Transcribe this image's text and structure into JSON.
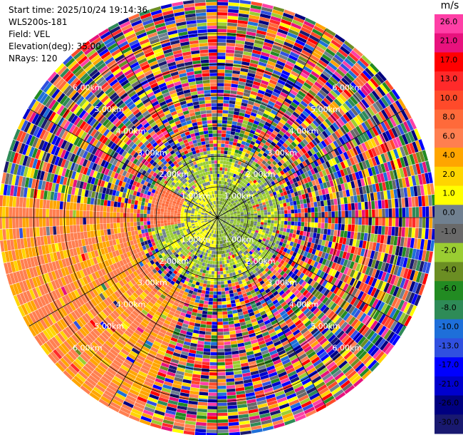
{
  "info": {
    "start_time": "Start time: 2025/10/24 19:14:36",
    "instrument": "WLS200s-181",
    "field": "Field: VEL",
    "elevation": "Elevation(deg): 35.00",
    "nrays": "NRays: 120"
  },
  "colorbar": {
    "unit": "m/s",
    "ticks": [
      "26.0",
      "21.0",
      "17.0",
      "13.0",
      "10.0",
      "8.0",
      "6.0",
      "4.0",
      "2.0",
      "1.0",
      "0.0",
      "-1.0",
      "-2.0",
      "-4.0",
      "-6.0",
      "-8.0",
      "-10.0",
      "-13.0",
      "-17.0",
      "-21.0",
      "-26.0",
      "-30.0"
    ],
    "colors": [
      "#ff3fa6",
      "#e8127d",
      "#ff0000",
      "#ff2a2a",
      "#ff4a2a",
      "#ff6a3a",
      "#ff7f50",
      "#ffa500",
      "#ffd500",
      "#ffff00",
      "#708090",
      "#696969",
      "#9acd32",
      "#6b8e23",
      "#228b22",
      "#2e8b57",
      "#1e6fd9",
      "#3050e0",
      "#0000ff",
      "#0000cd",
      "#000080",
      "#191970"
    ]
  },
  "chart_data": {
    "type": "ppi",
    "field": "VEL",
    "units": "m/s",
    "nrays": 120,
    "elevation_deg": 35.0,
    "range_rings_km": [
      1.0,
      2.0,
      3.0,
      4.0,
      5.0,
      6.0
    ],
    "range_ring_labels": [
      "1.00km",
      "2.00km",
      "3.00km",
      "4.00km",
      "5.00km",
      "6.00km"
    ],
    "max_range_km": 7.1,
    "value_bounds": [
      30,
      26,
      21,
      17,
      13,
      10,
      8,
      6,
      4,
      2,
      1,
      0,
      -1,
      -2,
      -4,
      -6,
      -8,
      -10,
      -13,
      -17,
      -21,
      -26,
      -30
    ]
  }
}
